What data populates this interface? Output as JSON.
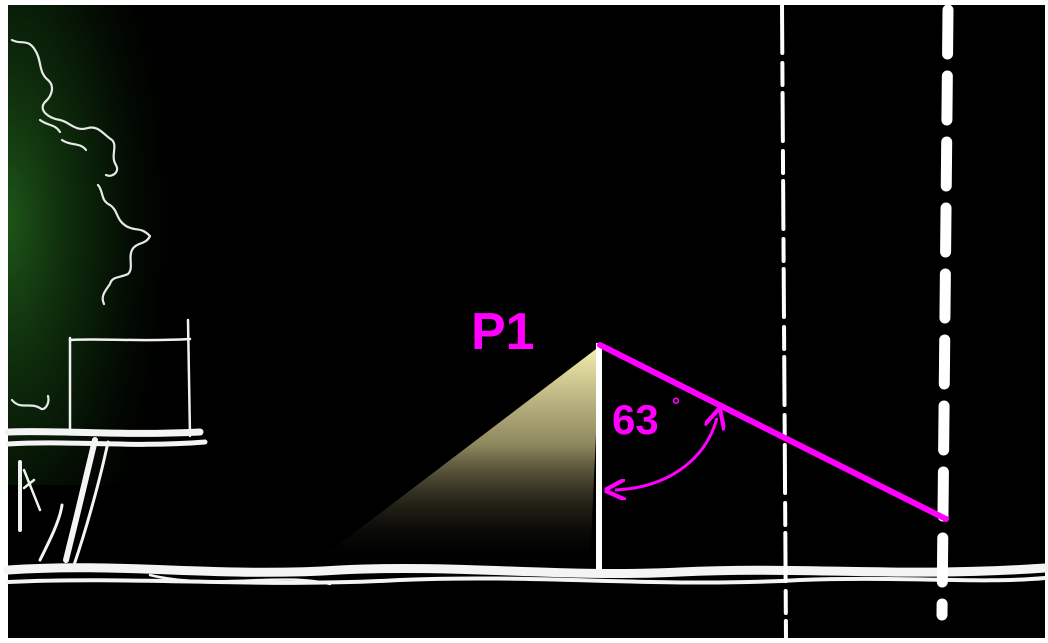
{
  "diagram": {
    "point_label": "P1",
    "angle_value": "63",
    "angle_unit": "°",
    "colors": {
      "background": "#000000",
      "frame": "#ffffff",
      "sketch": "#f2f2f2",
      "accent": "#ff00ff",
      "light_cone": "#f6f0b0",
      "vegetation": "#1f5a1a"
    }
  }
}
